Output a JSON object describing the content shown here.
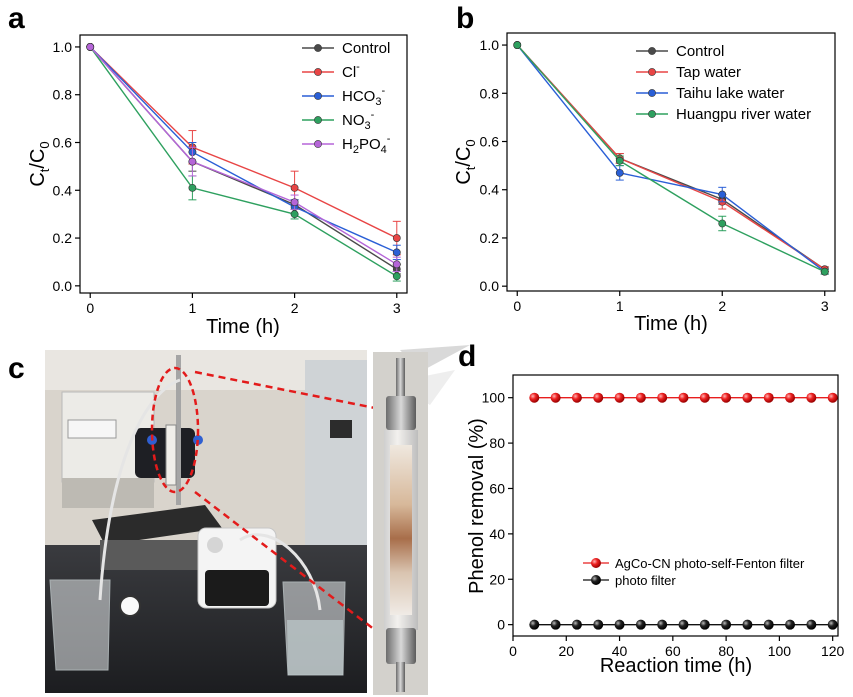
{
  "panel_labels": {
    "a": "a",
    "b": "b",
    "c": "c",
    "d": "d"
  },
  "chart_data": [
    {
      "panel": "a",
      "type": "line",
      "xlabel": "Time (h)",
      "ylabel": "Ct/C0",
      "x": [
        0,
        1,
        2,
        3
      ],
      "xticks": [
        "0",
        "1",
        "2",
        "3"
      ],
      "yticks": [
        "0.0",
        "0.2",
        "0.4",
        "0.6",
        "0.8",
        "1.0"
      ],
      "xlim": [
        -0.1,
        3.1
      ],
      "ylim": [
        -0.03,
        1.05
      ],
      "legend_position": "top-right",
      "series": [
        {
          "name": "Control",
          "label_base": "Control",
          "label_sub": "",
          "label_sup": "",
          "label_tail": "",
          "color": "#4a4a4a",
          "values": [
            1.0,
            0.52,
            0.34,
            0.07
          ],
          "errors": [
            0,
            0.04,
            0.02,
            0.02
          ]
        },
        {
          "name": "Cl-",
          "label_base": "Cl",
          "label_sub": "",
          "label_sup": "-",
          "label_tail": "",
          "color": "#e84545",
          "values": [
            1.0,
            0.58,
            0.41,
            0.2
          ],
          "errors": [
            0,
            0.07,
            0.07,
            0.07
          ]
        },
        {
          "name": "HCO3-",
          "label_base": "HCO",
          "label_sub": "3",
          "label_sup": "-",
          "label_tail": "",
          "color": "#2a5fd6",
          "values": [
            1.0,
            0.56,
            0.33,
            0.14
          ],
          "errors": [
            0,
            0.04,
            0.03,
            0.03
          ]
        },
        {
          "name": "NO3-",
          "label_base": "NO",
          "label_sub": "3",
          "label_sup": "-",
          "label_tail": "",
          "color": "#2ea05f",
          "values": [
            1.0,
            0.41,
            0.3,
            0.04
          ],
          "errors": [
            0,
            0.05,
            0.02,
            0.02
          ]
        },
        {
          "name": "H2PO4-",
          "label_base": "H",
          "label_sub": "2",
          "label_sup": "",
          "label_tail": "PO",
          "label_sub2": "4",
          "label_sup2": "-",
          "color": "#b565d8",
          "values": [
            1.0,
            0.52,
            0.35,
            0.09
          ],
          "errors": [
            0,
            0.06,
            0.03,
            0.03
          ]
        }
      ]
    },
    {
      "panel": "b",
      "type": "line",
      "xlabel": "Time (h)",
      "ylabel": "Ct/C0",
      "x": [
        0,
        1,
        2,
        3
      ],
      "xticks": [
        "0",
        "1",
        "2",
        "3"
      ],
      "yticks": [
        "0.0",
        "0.2",
        "0.4",
        "0.6",
        "0.8",
        "1.0"
      ],
      "xlim": [
        -0.1,
        3.1
      ],
      "ylim": [
        -0.02,
        1.05
      ],
      "legend_position": "top-right",
      "series": [
        {
          "name": "Control",
          "color": "#4a4a4a",
          "values": [
            1.0,
            0.53,
            0.36,
            0.07
          ],
          "errors": [
            0,
            0.02,
            0.02,
            0.01
          ]
        },
        {
          "name": "Tap water",
          "color": "#e84545",
          "values": [
            1.0,
            0.53,
            0.35,
            0.07
          ],
          "errors": [
            0,
            0.02,
            0.03,
            0.01
          ]
        },
        {
          "name": "Taihu lake water",
          "color": "#2a5fd6",
          "values": [
            1.0,
            0.47,
            0.38,
            0.06
          ],
          "errors": [
            0,
            0.03,
            0.03,
            0.01
          ]
        },
        {
          "name": "Huangpu river water",
          "color": "#2ea05f",
          "values": [
            1.0,
            0.52,
            0.26,
            0.06
          ],
          "errors": [
            0,
            0.02,
            0.03,
            0.01
          ]
        }
      ]
    },
    {
      "panel": "d",
      "type": "line",
      "xlabel": "Reaction time (h)",
      "ylabel": "Phenol removal (%)",
      "x": [
        8,
        16,
        24,
        32,
        40,
        48,
        56,
        64,
        72,
        80,
        88,
        96,
        104,
        112,
        120
      ],
      "xticks": [
        "0",
        "20",
        "40",
        "60",
        "80",
        "100",
        "120"
      ],
      "yticks": [
        "0",
        "20",
        "40",
        "60",
        "80",
        "100"
      ],
      "xlim": [
        0,
        122
      ],
      "ylim": [
        -5,
        110
      ],
      "legend_position": "bottom-right",
      "series": [
        {
          "name": "AgCo-CN photo-self-Fenton filter",
          "color": "#e81e1e",
          "values": [
            100,
            100,
            100,
            100,
            100,
            100,
            100,
            100,
            100,
            100,
            100,
            100,
            100,
            100,
            100
          ]
        },
        {
          "name": "photo filter",
          "color": "#111111",
          "values": [
            0,
            0,
            0,
            0,
            0,
            0,
            0,
            0,
            0,
            0,
            0,
            0,
            0,
            0,
            0
          ]
        }
      ]
    }
  ]
}
